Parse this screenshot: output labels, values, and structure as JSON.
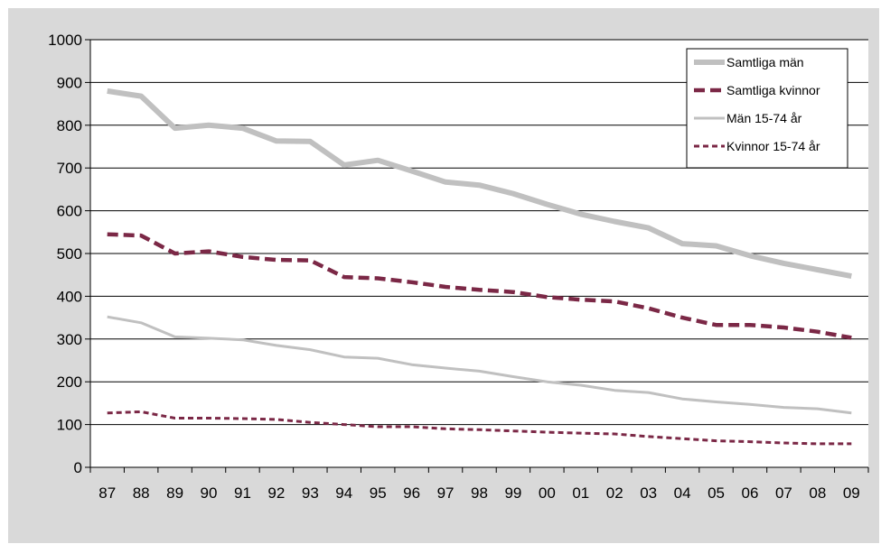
{
  "chart_data": {
    "type": "line",
    "title": "",
    "xlabel": "",
    "ylabel": "",
    "ylim": [
      0,
      1000
    ],
    "y_ticks": [
      "0",
      "100",
      "200",
      "300",
      "400",
      "500",
      "600",
      "700",
      "800",
      "900",
      "1000"
    ],
    "categories": [
      "87",
      "88",
      "89",
      "90",
      "91",
      "92",
      "93",
      "94",
      "95",
      "96",
      "97",
      "98",
      "99",
      "00",
      "01",
      "02",
      "03",
      "04",
      "05",
      "06",
      "07",
      "08",
      "09"
    ],
    "grid": "horizontal",
    "legend_position": "top-right",
    "series": [
      {
        "name": "Samtliga män",
        "style": "solid-thick",
        "color": "#c0c0c0",
        "values": [
          880,
          868,
          793,
          800,
          793,
          763,
          762,
          707,
          718,
          693,
          667,
          660,
          640,
          615,
          592,
          575,
          560,
          523,
          518,
          495,
          477,
          462,
          447
        ]
      },
      {
        "name": "Samtliga kvinnor",
        "style": "dashed-thick",
        "color": "#7b2846",
        "values": [
          545,
          542,
          500,
          505,
          492,
          485,
          484,
          445,
          442,
          433,
          422,
          415,
          410,
          398,
          392,
          388,
          372,
          350,
          333,
          333,
          327,
          317,
          303
        ]
      },
      {
        "name": "Män 15-74 år",
        "style": "solid-thin",
        "color": "#c0c0c0",
        "values": [
          352,
          338,
          305,
          302,
          298,
          285,
          275,
          258,
          255,
          240,
          232,
          225,
          212,
          200,
          192,
          180,
          175,
          160,
          153,
          147,
          140,
          137,
          127
        ]
      },
      {
        "name": "Kvinnor 15-74 år",
        "style": "dashed-thin",
        "color": "#7b2846",
        "values": [
          127,
          130,
          115,
          115,
          114,
          112,
          105,
          100,
          95,
          95,
          90,
          88,
          85,
          82,
          80,
          78,
          72,
          67,
          62,
          60,
          57,
          55,
          55
        ]
      }
    ]
  }
}
